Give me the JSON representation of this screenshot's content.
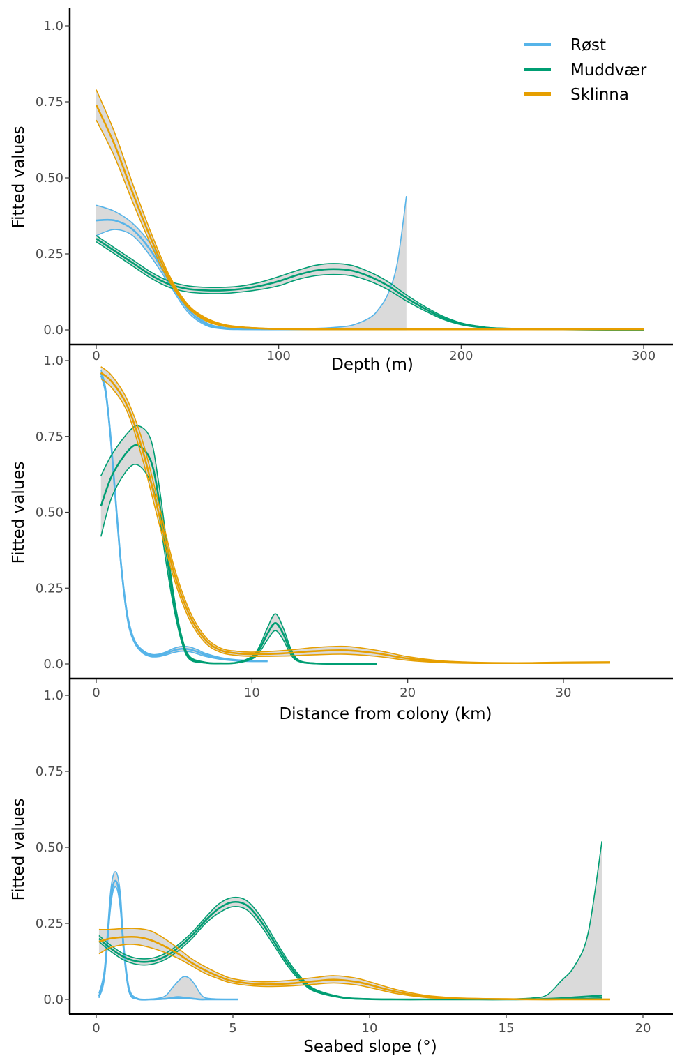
{
  "legend": {
    "placement": "top-right",
    "items": [
      {
        "label": "Røst",
        "color": "#56B4E9"
      },
      {
        "label": "Muddvær",
        "color": "#009E73"
      },
      {
        "label": "Sklinna",
        "color": "#E69F00"
      }
    ]
  },
  "colors": {
    "ribbon": "#d3d3d3",
    "axis": "#000000",
    "tick_text": "#4d4d4d"
  },
  "chart_data": [
    {
      "type": "line",
      "title": "",
      "xlabel": "Depth (m)",
      "ylabel": "Fitted values",
      "xlim": [
        -10,
        310
      ],
      "ylim": [
        0,
        1.0
      ],
      "x_ticks": [
        0,
        100,
        200,
        300
      ],
      "x_tick_labels": [
        "0",
        "100",
        "200",
        "300"
      ],
      "y_ticks": [
        0,
        0.25,
        0.5,
        0.75,
        1.0
      ],
      "y_tick_labels": [
        "0.0",
        "0.25",
        "0.50",
        "0.75",
        "1.0"
      ],
      "grid": false,
      "series": [
        {
          "name": "Røst",
          "color": "#56B4E9",
          "x": [
            0,
            10,
            20,
            30,
            40,
            50,
            60,
            70,
            80,
            90,
            100,
            110,
            120,
            130,
            140,
            150,
            155,
            160,
            165,
            170
          ],
          "y": [
            0.36,
            0.36,
            0.33,
            0.26,
            0.16,
            0.07,
            0.02,
            0.005,
            0.003,
            0.002,
            0.002,
            0.002,
            0.002,
            0.002,
            0.002,
            0.002,
            0.002,
            0.002,
            0.002,
            0.002
          ],
          "lower": [
            0.31,
            0.33,
            0.31,
            0.24,
            0.15,
            0.06,
            0.015,
            0.003,
            0.001,
            0.001,
            0.001,
            0.001,
            0.001,
            0.001,
            0.001,
            0.001,
            0.001,
            0.001,
            0.001,
            0.001
          ],
          "upper": [
            0.41,
            0.39,
            0.35,
            0.28,
            0.17,
            0.08,
            0.025,
            0.008,
            0.005,
            0.004,
            0.004,
            0.004,
            0.005,
            0.008,
            0.015,
            0.04,
            0.07,
            0.12,
            0.22,
            0.44
          ]
        },
        {
          "name": "Muddvær",
          "color": "#009E73",
          "x": [
            0,
            10,
            20,
            30,
            40,
            50,
            60,
            70,
            80,
            90,
            100,
            110,
            120,
            130,
            140,
            150,
            160,
            170,
            180,
            190,
            200,
            210,
            220,
            250,
            300
          ],
          "y": [
            0.3,
            0.26,
            0.22,
            0.18,
            0.15,
            0.135,
            0.13,
            0.13,
            0.135,
            0.145,
            0.16,
            0.18,
            0.195,
            0.2,
            0.195,
            0.175,
            0.145,
            0.105,
            0.07,
            0.04,
            0.02,
            0.01,
            0.005,
            0.002,
            0.0
          ],
          "lower": [
            0.29,
            0.25,
            0.21,
            0.17,
            0.14,
            0.125,
            0.12,
            0.12,
            0.125,
            0.133,
            0.145,
            0.165,
            0.178,
            0.182,
            0.178,
            0.16,
            0.132,
            0.095,
            0.063,
            0.035,
            0.017,
            0.008,
            0.004,
            0.001,
            0.0
          ],
          "upper": [
            0.31,
            0.27,
            0.23,
            0.19,
            0.16,
            0.145,
            0.14,
            0.14,
            0.145,
            0.157,
            0.175,
            0.195,
            0.212,
            0.218,
            0.212,
            0.19,
            0.158,
            0.115,
            0.077,
            0.045,
            0.023,
            0.012,
            0.006,
            0.003,
            0.001
          ]
        },
        {
          "name": "Sklinna",
          "color": "#E69F00",
          "x": [
            0,
            10,
            20,
            30,
            40,
            50,
            60,
            70,
            80,
            90,
            100,
            120,
            150,
            200,
            250,
            300
          ],
          "y": [
            0.74,
            0.61,
            0.45,
            0.3,
            0.17,
            0.08,
            0.035,
            0.015,
            0.008,
            0.005,
            0.003,
            0.002,
            0.002,
            0.002,
            0.002,
            0.002
          ],
          "lower": [
            0.69,
            0.57,
            0.42,
            0.28,
            0.16,
            0.075,
            0.03,
            0.012,
            0.006,
            0.004,
            0.002,
            0.001,
            0.001,
            0.001,
            0.001,
            0.001
          ],
          "upper": [
            0.79,
            0.65,
            0.48,
            0.32,
            0.18,
            0.085,
            0.04,
            0.018,
            0.01,
            0.006,
            0.004,
            0.003,
            0.003,
            0.003,
            0.003,
            0.003
          ]
        }
      ]
    },
    {
      "type": "line",
      "title": "",
      "xlabel": "Distance from colony (km)",
      "ylabel": "Fitted values",
      "xlim": [
        -1.5,
        37
      ],
      "ylim": [
        0,
        1.0
      ],
      "x_ticks": [
        0,
        10,
        20,
        30
      ],
      "x_tick_labels": [
        "0",
        "10",
        "20",
        "30"
      ],
      "y_ticks": [
        0,
        0.25,
        0.5,
        0.75,
        1.0
      ],
      "y_tick_labels": [
        "0.0",
        "0.25",
        "0.50",
        "0.75",
        "1.0"
      ],
      "grid": false,
      "series": [
        {
          "name": "Røst",
          "color": "#56B4E9",
          "x": [
            0.3,
            0.6,
            0.9,
            1.2,
            1.5,
            1.8,
            2.1,
            2.5,
            3,
            3.5,
            4,
            4.5,
            5,
            5.5,
            6,
            6.5,
            7,
            8,
            9,
            10,
            11
          ],
          "y": [
            0.96,
            0.9,
            0.76,
            0.57,
            0.38,
            0.23,
            0.13,
            0.07,
            0.04,
            0.028,
            0.028,
            0.035,
            0.045,
            0.05,
            0.048,
            0.04,
            0.03,
            0.018,
            0.012,
            0.01,
            0.01
          ],
          "lower": [
            0.95,
            0.89,
            0.75,
            0.56,
            0.37,
            0.22,
            0.12,
            0.065,
            0.035,
            0.024,
            0.024,
            0.03,
            0.038,
            0.042,
            0.04,
            0.033,
            0.025,
            0.015,
            0.01,
            0.008,
            0.008
          ],
          "upper": [
            0.97,
            0.91,
            0.77,
            0.58,
            0.39,
            0.24,
            0.14,
            0.075,
            0.045,
            0.032,
            0.032,
            0.04,
            0.052,
            0.058,
            0.056,
            0.047,
            0.035,
            0.021,
            0.014,
            0.012,
            0.012
          ]
        },
        {
          "name": "Muddvær",
          "color": "#009E73",
          "x": [
            0.3,
            1,
            2,
            2.7,
            3.5,
            4,
            4.5,
            5,
            5.5,
            6,
            7,
            8,
            9,
            10,
            10.5,
            11,
            11.5,
            12,
            12.5,
            13,
            14,
            16,
            18
          ],
          "y": [
            0.52,
            0.62,
            0.7,
            0.72,
            0.67,
            0.55,
            0.37,
            0.2,
            0.08,
            0.02,
            0.004,
            0.002,
            0.004,
            0.02,
            0.05,
            0.1,
            0.135,
            0.1,
            0.04,
            0.01,
            0.002,
            0.0,
            0.0
          ],
          "lower": [
            0.42,
            0.55,
            0.64,
            0.655,
            0.6,
            0.5,
            0.33,
            0.18,
            0.07,
            0.015,
            0.003,
            0.001,
            0.003,
            0.016,
            0.04,
            0.08,
            0.11,
            0.08,
            0.03,
            0.008,
            0.001,
            0.0,
            0.0
          ],
          "upper": [
            0.62,
            0.69,
            0.76,
            0.785,
            0.74,
            0.6,
            0.41,
            0.22,
            0.09,
            0.025,
            0.006,
            0.003,
            0.005,
            0.025,
            0.06,
            0.12,
            0.165,
            0.12,
            0.05,
            0.013,
            0.003,
            0.001,
            0.001
          ]
        },
        {
          "name": "Sklinna",
          "color": "#E69F00",
          "x": [
            0.3,
            1,
            2,
            3,
            4,
            5,
            6,
            7,
            8,
            9,
            10,
            12,
            14,
            16,
            18,
            20,
            22,
            24,
            26,
            28,
            30,
            33
          ],
          "y": [
            0.96,
            0.93,
            0.85,
            0.7,
            0.5,
            0.3,
            0.16,
            0.08,
            0.045,
            0.035,
            0.032,
            0.035,
            0.042,
            0.045,
            0.035,
            0.018,
            0.008,
            0.004,
            0.003,
            0.003,
            0.004,
            0.005
          ],
          "lower": [
            0.94,
            0.91,
            0.83,
            0.67,
            0.47,
            0.28,
            0.145,
            0.07,
            0.038,
            0.028,
            0.025,
            0.026,
            0.03,
            0.032,
            0.025,
            0.012,
            0.005,
            0.002,
            0.002,
            0.002,
            0.002,
            0.003
          ],
          "upper": [
            0.98,
            0.95,
            0.87,
            0.73,
            0.53,
            0.32,
            0.175,
            0.09,
            0.052,
            0.042,
            0.039,
            0.044,
            0.054,
            0.058,
            0.045,
            0.024,
            0.011,
            0.006,
            0.004,
            0.004,
            0.006,
            0.007
          ]
        }
      ]
    },
    {
      "type": "line",
      "title": "",
      "xlabel": "Seabed slope (°)",
      "ylabel": "Fitted values",
      "xlim": [
        -0.9,
        20.6
      ],
      "ylim": [
        0,
        1.0
      ],
      "x_ticks": [
        0,
        5,
        10,
        15,
        20
      ],
      "x_tick_labels": [
        "0",
        "5",
        "10",
        "15",
        "20"
      ],
      "y_ticks": [
        0,
        0.25,
        0.5,
        0.75,
        1.0
      ],
      "y_tick_labels": [
        "0.0",
        "0.25",
        "0.50",
        "0.75",
        "1.0"
      ],
      "grid": false,
      "series": [
        {
          "name": "Røst",
          "color": "#56B4E9",
          "x": [
            0.1,
            0.3,
            0.5,
            0.6,
            0.7,
            0.8,
            0.9,
            1.0,
            1.2,
            1.5,
            2.0,
            2.5,
            2.8,
            3.0,
            3.2,
            3.4,
            3.6,
            3.8,
            4.0,
            4.5,
            5.2
          ],
          "y": [
            0.01,
            0.08,
            0.3,
            0.37,
            0.39,
            0.37,
            0.3,
            0.17,
            0.03,
            0.002,
            0.0,
            0.002,
            0.006,
            0.008,
            0.006,
            0.004,
            0.002,
            0.0,
            0.0,
            0.0,
            0.0
          ],
          "lower": [
            0.005,
            0.07,
            0.28,
            0.35,
            0.37,
            0.35,
            0.28,
            0.16,
            0.025,
            0.001,
            0.0,
            0.001,
            0.003,
            0.004,
            0.003,
            0.002,
            0.001,
            0.0,
            0.0,
            0.0,
            0.0
          ],
          "upper": [
            0.02,
            0.1,
            0.33,
            0.4,
            0.42,
            0.4,
            0.33,
            0.19,
            0.04,
            0.004,
            0.001,
            0.01,
            0.04,
            0.06,
            0.075,
            0.07,
            0.05,
            0.02,
            0.005,
            0.001,
            0.0
          ]
        },
        {
          "name": "Muddvær",
          "color": "#009E73",
          "x": [
            0.1,
            0.5,
            1,
            1.5,
            2,
            2.5,
            3,
            3.5,
            4,
            4.5,
            5,
            5.5,
            6,
            6.5,
            7,
            7.5,
            8,
            9,
            10,
            11,
            12,
            13,
            14,
            15,
            16,
            16.5,
            17,
            17.5,
            18,
            18.5
          ],
          "y": [
            0.2,
            0.17,
            0.14,
            0.125,
            0.125,
            0.14,
            0.17,
            0.21,
            0.26,
            0.3,
            0.32,
            0.31,
            0.26,
            0.19,
            0.12,
            0.065,
            0.03,
            0.006,
            0.001,
            0.0,
            0.0,
            0.0,
            0.0,
            0.0,
            0.001,
            0.002,
            0.004,
            0.007,
            0.01,
            0.013
          ],
          "lower": [
            0.19,
            0.16,
            0.13,
            0.115,
            0.115,
            0.13,
            0.16,
            0.2,
            0.25,
            0.285,
            0.305,
            0.295,
            0.245,
            0.178,
            0.11,
            0.058,
            0.026,
            0.005,
            0.0,
            0.0,
            0.0,
            0.0,
            0.0,
            0.0,
            0.0,
            0.001,
            0.002,
            0.003,
            0.004,
            0.005
          ],
          "upper": [
            0.21,
            0.18,
            0.15,
            0.135,
            0.135,
            0.15,
            0.18,
            0.22,
            0.27,
            0.315,
            0.335,
            0.325,
            0.275,
            0.202,
            0.13,
            0.072,
            0.034,
            0.008,
            0.002,
            0.0,
            0.0,
            0.0,
            0.0,
            0.001,
            0.005,
            0.015,
            0.06,
            0.11,
            0.22,
            0.52
          ]
        },
        {
          "name": "Sklinna",
          "color": "#E69F00",
          "x": [
            0.1,
            0.5,
            1,
            1.5,
            2,
            2.5,
            3,
            3.5,
            4,
            4.5,
            5,
            6,
            7,
            8,
            8.7,
            9.5,
            10,
            11,
            12,
            13,
            14,
            15,
            16,
            17,
            18,
            18.8
          ],
          "y": [
            0.19,
            0.2,
            0.205,
            0.205,
            0.195,
            0.175,
            0.15,
            0.12,
            0.095,
            0.075,
            0.06,
            0.05,
            0.052,
            0.06,
            0.065,
            0.058,
            0.048,
            0.025,
            0.01,
            0.004,
            0.002,
            0.001,
            0.0,
            0.0,
            0.0,
            0.0
          ],
          "lower": [
            0.15,
            0.17,
            0.18,
            0.18,
            0.17,
            0.155,
            0.135,
            0.11,
            0.085,
            0.067,
            0.053,
            0.043,
            0.044,
            0.05,
            0.054,
            0.048,
            0.039,
            0.019,
            0.007,
            0.002,
            0.001,
            0.0,
            0.0,
            0.0,
            0.0,
            0.0
          ],
          "upper": [
            0.23,
            0.23,
            0.233,
            0.233,
            0.225,
            0.2,
            0.168,
            0.133,
            0.107,
            0.085,
            0.068,
            0.058,
            0.062,
            0.072,
            0.078,
            0.07,
            0.058,
            0.032,
            0.014,
            0.006,
            0.003,
            0.002,
            0.001,
            0.001,
            0.001,
            0.001
          ]
        }
      ]
    }
  ]
}
